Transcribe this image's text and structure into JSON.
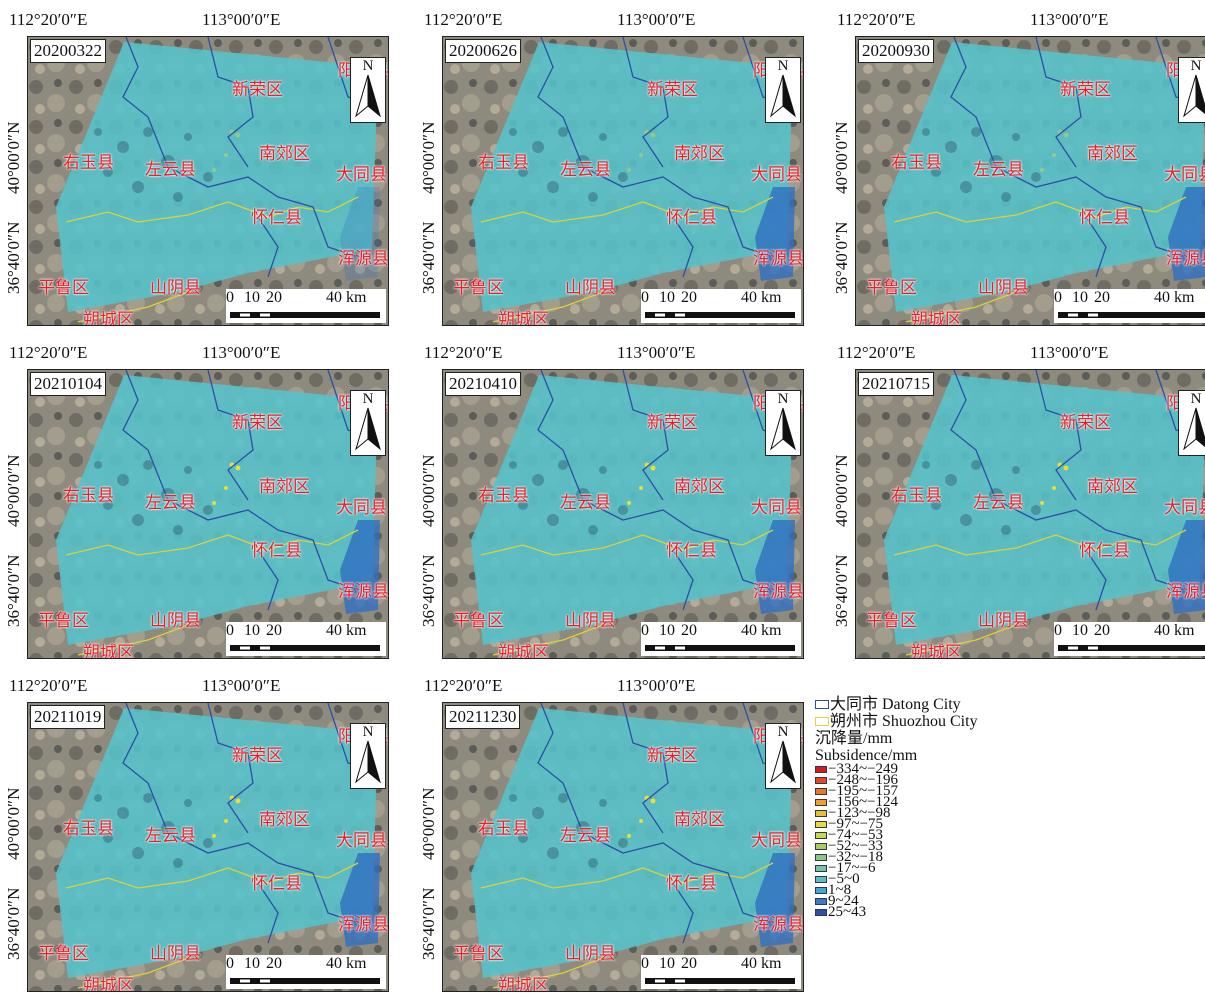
{
  "coords": {
    "x1": "112°20′0″E",
    "x2": "113°00′0″E",
    "y1": "40°00′0″N",
    "y2": "36°40′0″N"
  },
  "panels": [
    {
      "date": "20200322"
    },
    {
      "date": "20200626"
    },
    {
      "date": "20200930"
    },
    {
      "date": "20210104"
    },
    {
      "date": "20210410"
    },
    {
      "date": "20210715"
    },
    {
      "date": "20211019"
    },
    {
      "date": "20211230"
    }
  ],
  "places": {
    "yanggao": "阳高县",
    "xinrong": "新荣区",
    "nanjiao": "南郊区",
    "datong_county": "大同县",
    "youyu": "右玉县",
    "zuoyun": "左云县",
    "huairen": "怀仁县",
    "hunyuan": "浑源县",
    "pinglu": "平鲁区",
    "shanyin": "山阴县",
    "yingxian": "应县",
    "shuocheng": "朔城区"
  },
  "north_arrow": "N",
  "scale": {
    "labels": [
      "0",
      "10",
      "20",
      "40 km"
    ]
  },
  "legend": {
    "boundaries": [
      {
        "label": "大同市 Datong City",
        "color": "#2b4fa8"
      },
      {
        "label": "朔州市 Shuozhou City",
        "color": "#e6d43a"
      }
    ],
    "title_cn": "沉降量/mm",
    "title_en": "Subsidence/mm",
    "classes": [
      {
        "label": "−334~−249",
        "color": "#d7191c"
      },
      {
        "label": "−248~−196",
        "color": "#e2491e"
      },
      {
        "label": "−195~−157",
        "color": "#ec7622"
      },
      {
        "label": "−156~−124",
        "color": "#f2a025"
      },
      {
        "label": "−123~−98",
        "color": "#e7c12a"
      },
      {
        "label": "−97~−75",
        "color": "#e3dc3a"
      },
      {
        "label": "−74~−53",
        "color": "#c9d94a"
      },
      {
        "label": "−52~−33",
        "color": "#a8cf5c"
      },
      {
        "label": "−32~−18",
        "color": "#8cc681"
      },
      {
        "label": "−17~−6",
        "color": "#75c2a4"
      },
      {
        "label": "−5~0",
        "color": "#5fbcc4"
      },
      {
        "label": "1~8",
        "color": "#3fa7dc"
      },
      {
        "label": "9~24",
        "color": "#3b7cc8"
      },
      {
        "label": "25~43",
        "color": "#2c4fa3"
      }
    ]
  }
}
